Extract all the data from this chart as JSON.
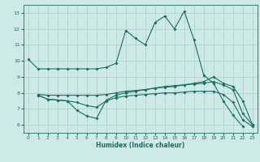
{
  "xlabel": "Humidex (Indice chaleur)",
  "bg_color": "#cdeae6",
  "grid_color": "#b0d4d0",
  "line_color": "#1a6e66",
  "xlim": [
    -0.5,
    23.5
  ],
  "ylim": [
    5.5,
    13.5
  ],
  "xticks": [
    0,
    1,
    2,
    3,
    4,
    5,
    6,
    7,
    8,
    9,
    10,
    11,
    12,
    13,
    14,
    15,
    16,
    17,
    18,
    19,
    20,
    21,
    22,
    23
  ],
  "yticks": [
    6,
    7,
    8,
    9,
    10,
    11,
    12,
    13
  ],
  "line1_x": [
    0,
    1,
    2,
    3,
    4,
    5,
    6,
    7,
    8,
    9,
    10,
    11,
    12,
    13,
    14,
    15,
    16,
    17,
    18,
    19,
    20,
    21,
    22
  ],
  "line1_y": [
    10.1,
    9.5,
    9.5,
    9.5,
    9.5,
    9.5,
    9.5,
    9.5,
    9.6,
    9.85,
    11.9,
    11.4,
    11.0,
    12.4,
    12.8,
    12.0,
    13.1,
    11.3,
    9.1,
    8.6,
    7.5,
    6.6,
    5.9
  ],
  "line2_x": [
    1,
    2,
    3,
    4,
    5,
    6,
    7,
    8,
    9,
    10,
    11,
    12,
    13,
    14,
    15,
    16,
    17,
    18,
    19,
    20,
    21,
    22,
    23
  ],
  "line2_y": [
    7.9,
    7.85,
    7.85,
    7.85,
    7.85,
    7.85,
    7.85,
    7.9,
    8.0,
    8.1,
    8.15,
    8.2,
    8.3,
    8.35,
    8.4,
    8.5,
    8.6,
    8.7,
    9.0,
    8.6,
    8.4,
    7.5,
    6.0
  ],
  "line3_x": [
    1,
    2,
    3,
    4,
    5,
    6,
    7,
    8,
    9,
    10,
    11,
    12,
    13,
    14,
    15,
    16,
    17,
    18,
    19,
    20,
    21,
    22,
    23
  ],
  "line3_y": [
    7.85,
    7.6,
    7.55,
    7.5,
    6.9,
    6.55,
    6.4,
    7.55,
    7.85,
    8.0,
    8.1,
    8.2,
    8.3,
    8.4,
    8.45,
    8.5,
    8.55,
    8.6,
    8.7,
    8.5,
    8.2,
    6.7,
    6.0
  ],
  "line4_x": [
    1,
    2,
    3,
    4,
    5,
    6,
    7,
    8,
    9,
    10,
    11,
    12,
    13,
    14,
    15,
    16,
    17,
    18,
    19,
    20,
    21,
    22,
    23
  ],
  "line4_y": [
    7.85,
    7.6,
    7.55,
    7.5,
    7.4,
    7.2,
    7.1,
    7.5,
    7.7,
    7.8,
    7.85,
    7.9,
    7.95,
    8.0,
    8.0,
    8.05,
    8.1,
    8.1,
    8.1,
    7.9,
    7.4,
    6.3,
    5.9
  ]
}
